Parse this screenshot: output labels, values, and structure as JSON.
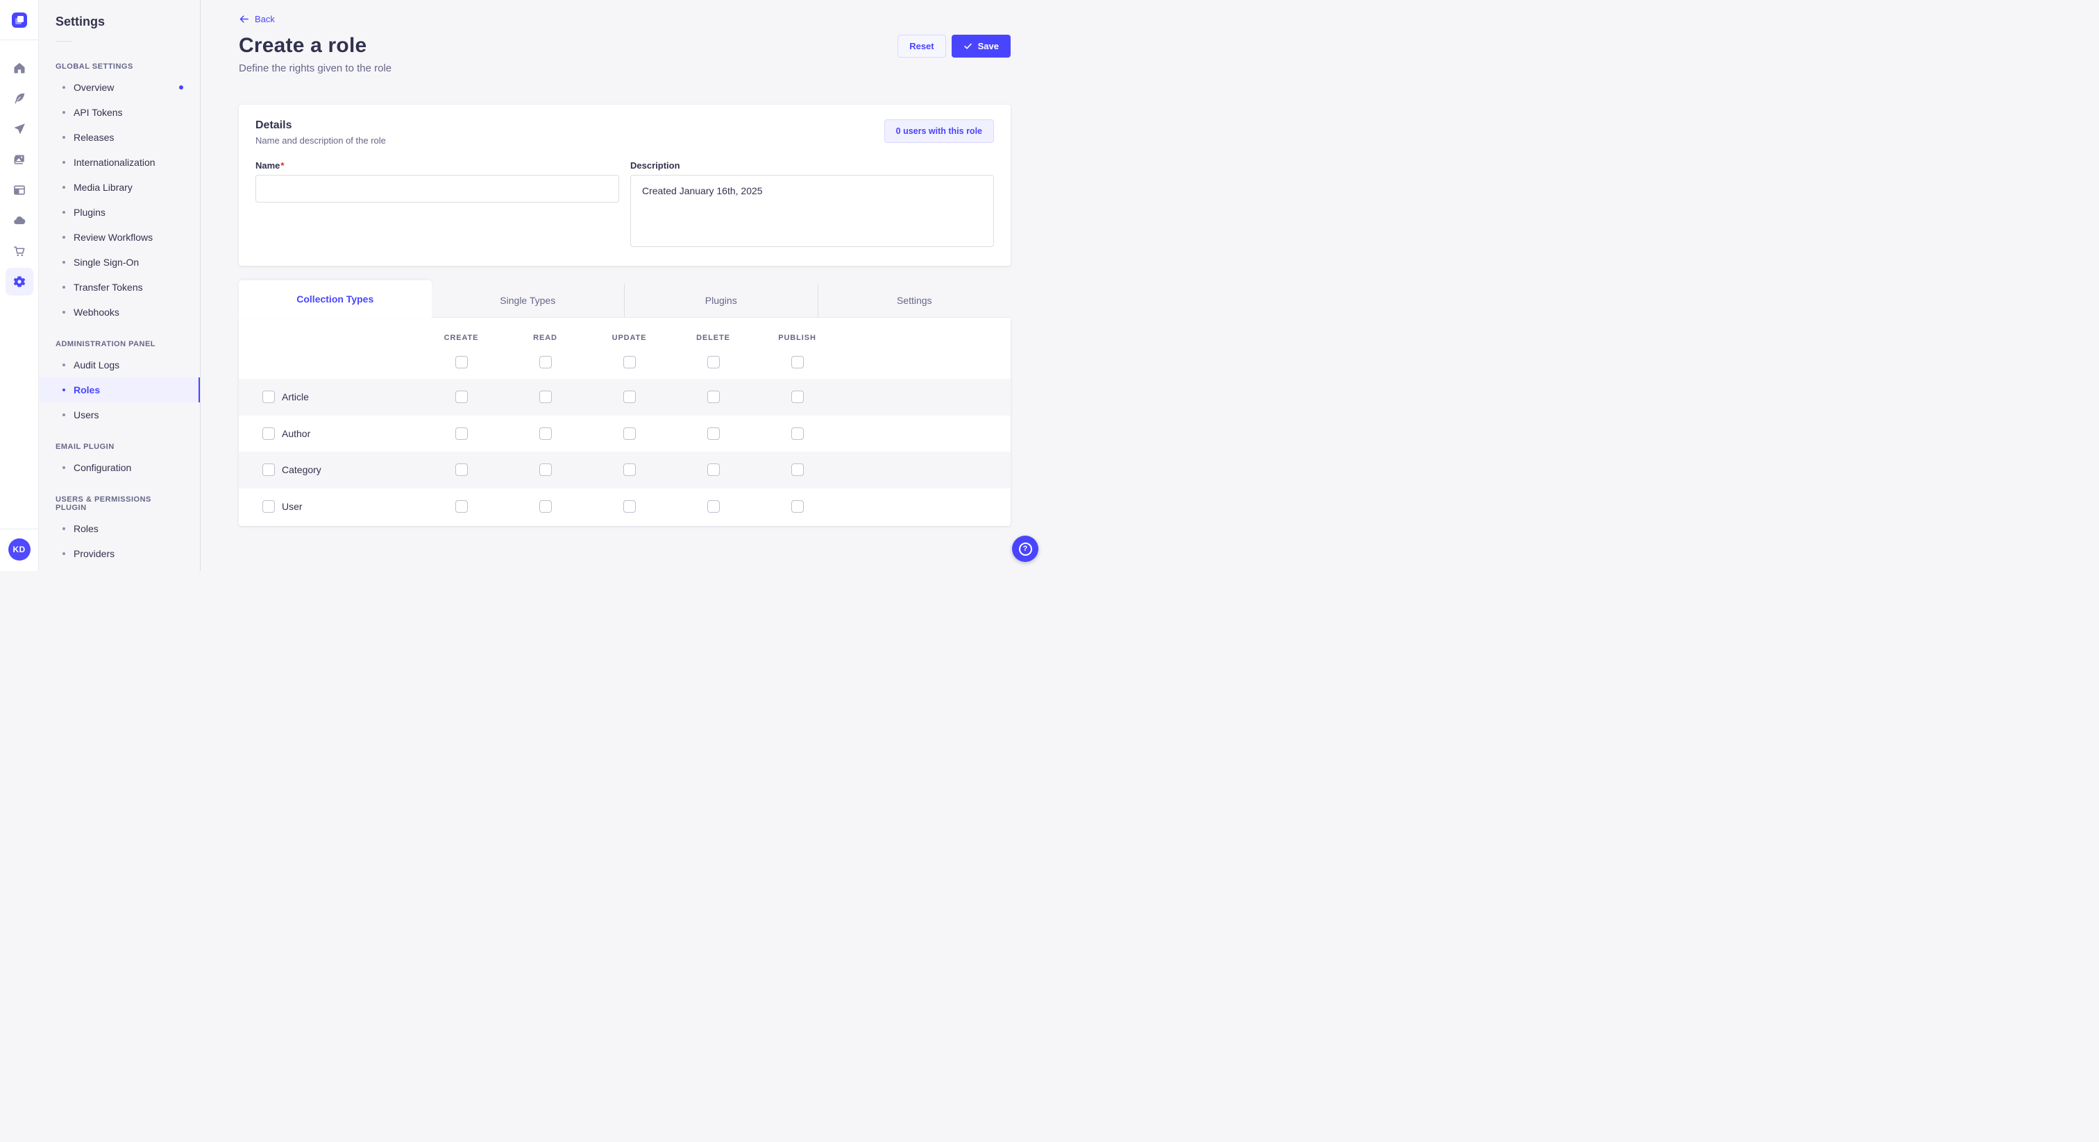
{
  "colors": {
    "primary": "#4945ff",
    "primary_light": "#f0f0ff",
    "primary_border": "#d9d8ff",
    "page_background": "#f6f6f9",
    "surface": "#ffffff",
    "text": "#32324d",
    "text_muted": "#666687",
    "border": "#dcdce4",
    "danger": "#d02b20"
  },
  "rail": {
    "icons": [
      {
        "name": "home",
        "icon": "home",
        "active": false
      },
      {
        "name": "content-manager",
        "icon": "feather",
        "active": false
      },
      {
        "name": "releases",
        "icon": "paper-plane",
        "active": false
      },
      {
        "name": "media-library",
        "icon": "images",
        "active": false
      },
      {
        "name": "content-type-builder",
        "icon": "layout",
        "active": false
      },
      {
        "name": "deploy",
        "icon": "cloud",
        "active": false
      },
      {
        "name": "marketplace",
        "icon": "cart",
        "active": false
      },
      {
        "name": "settings",
        "icon": "gear",
        "active": true
      }
    ],
    "avatar_initials": "KD"
  },
  "subnav": {
    "title": "Settings",
    "sections": [
      {
        "label": "GLOBAL SETTINGS",
        "items": [
          {
            "label": "Overview",
            "notification": true
          },
          {
            "label": "API Tokens"
          },
          {
            "label": "Releases"
          },
          {
            "label": "Internationalization"
          },
          {
            "label": "Media Library"
          },
          {
            "label": "Plugins"
          },
          {
            "label": "Review Workflows"
          },
          {
            "label": "Single Sign-On"
          },
          {
            "label": "Transfer Tokens"
          },
          {
            "label": "Webhooks"
          }
        ]
      },
      {
        "label": "ADMINISTRATION PANEL",
        "items": [
          {
            "label": "Audit Logs"
          },
          {
            "label": "Roles",
            "active": true
          },
          {
            "label": "Users"
          }
        ]
      },
      {
        "label": "EMAIL PLUGIN",
        "items": [
          {
            "label": "Configuration"
          }
        ]
      },
      {
        "label": "USERS & PERMISSIONS PLUGIN",
        "items": [
          {
            "label": "Roles"
          },
          {
            "label": "Providers"
          }
        ]
      }
    ]
  },
  "header": {
    "back_label": "Back",
    "title": "Create a role",
    "subtitle": "Define the rights given to the role",
    "reset_label": "Reset",
    "save_label": "Save"
  },
  "details": {
    "title": "Details",
    "subtitle": "Name and description of the role",
    "users_button_label": "0 users with this role",
    "name_label": "Name",
    "required_mark": "*",
    "name_value": "",
    "name_placeholder": "",
    "description_label": "Description",
    "description_value": "Created January 16th, 2025"
  },
  "tabs": [
    {
      "label": "Collection Types",
      "active": true
    },
    {
      "label": "Single Types",
      "active": false
    },
    {
      "label": "Plugins",
      "active": false
    },
    {
      "label": "Settings",
      "active": false
    }
  ],
  "permissions": {
    "columns": [
      "CREATE",
      "READ",
      "UPDATE",
      "DELETE",
      "PUBLISH"
    ],
    "select_all_checked": [
      false,
      false,
      false,
      false,
      false
    ],
    "rows": [
      {
        "label": "Article",
        "row_checked": false,
        "values": [
          false,
          false,
          false,
          false,
          false
        ]
      },
      {
        "label": "Author",
        "row_checked": false,
        "values": [
          false,
          false,
          false,
          false,
          false
        ]
      },
      {
        "label": "Category",
        "row_checked": false,
        "values": [
          false,
          false,
          false,
          false,
          false
        ]
      },
      {
        "label": "User",
        "row_checked": false,
        "values": [
          false,
          false,
          false,
          false,
          false
        ]
      }
    ]
  },
  "help": {
    "glyph": "?"
  }
}
